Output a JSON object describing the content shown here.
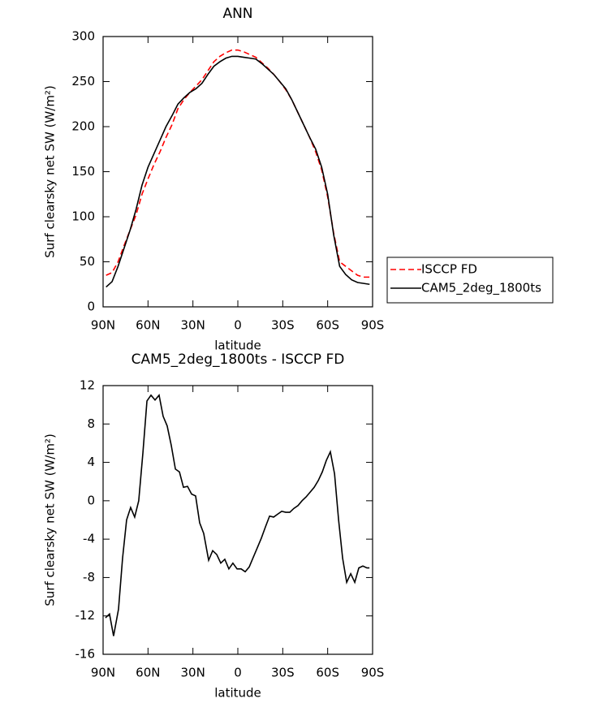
{
  "chart_data": [
    {
      "type": "line",
      "title": "ANN",
      "xlabel": "latitude",
      "ylabel": "Surf clearsky net SW (W/m²)",
      "x": [
        88,
        84,
        80,
        76,
        72,
        68,
        64,
        60,
        56,
        52,
        48,
        44,
        40,
        36,
        32,
        28,
        24,
        20,
        16,
        12,
        8,
        4,
        0,
        -4,
        -8,
        -12,
        -16,
        -20,
        -24,
        -28,
        -32,
        -36,
        -40,
        -44,
        -48,
        -52,
        -56,
        -60,
        -64,
        -68,
        -72,
        -76,
        -80,
        -84,
        -88
      ],
      "series": [
        {
          "name": "ISCCP FD",
          "color": "#ff0000",
          "dashed": true,
          "values": [
            35,
            38,
            50,
            68,
            85,
            102,
            125,
            142,
            158,
            172,
            188,
            202,
            220,
            230,
            238,
            245,
            252,
            262,
            272,
            278,
            282,
            285,
            285,
            283,
            280,
            277,
            271,
            265,
            258,
            250,
            241,
            230,
            216,
            202,
            188,
            172,
            152,
            122,
            82,
            50,
            45,
            40,
            35,
            33,
            33
          ]
        },
        {
          "name": "CAM5_2deg_1800ts",
          "color": "#000000",
          "dashed": false,
          "values": [
            22,
            28,
            45,
            65,
            85,
            108,
            135,
            155,
            170,
            185,
            200,
            212,
            225,
            232,
            238,
            242,
            248,
            258,
            267,
            272,
            276,
            278,
            278,
            277,
            276,
            275,
            270,
            264,
            258,
            250,
            242,
            230,
            216,
            202,
            188,
            175,
            155,
            125,
            80,
            45,
            36,
            30,
            27,
            26,
            25
          ]
        }
      ],
      "xlim": [
        90,
        -90
      ],
      "xticks": [
        {
          "value": 90,
          "label": "90N"
        },
        {
          "value": 60,
          "label": "60N"
        },
        {
          "value": 30,
          "label": "30N"
        },
        0,
        {
          "value": -30,
          "label": "30S"
        },
        {
          "value": -60,
          "label": "60S"
        },
        {
          "value": -90,
          "label": "90S"
        }
      ],
      "ylim": [
        0,
        300
      ],
      "yticks": [
        0,
        50,
        100,
        150,
        200,
        250,
        300
      ],
      "legend": "outside-right"
    },
    {
      "type": "line",
      "title": "CAM5_2deg_1800ts - ISCCP FD",
      "xlabel": "latitude",
      "ylabel": "Surf clearsky net SW (W/m²)",
      "x": [
        88.4,
        85.7,
        83,
        79.7,
        77,
        74.3,
        71.6,
        68.9,
        66.2,
        63.4,
        60.7,
        58,
        55.3,
        52.6,
        49.9,
        47.2,
        44.5,
        41.7,
        39,
        36.3,
        33.6,
        30.9,
        28.2,
        25.5,
        22.8,
        19.5,
        16.8,
        14.1,
        11.4,
        8.7,
        6,
        3.3,
        0.5,
        -2.2,
        -4.9,
        -7.6,
        -10.3,
        -13,
        -15.7,
        -18.5,
        -21.2,
        -23.9,
        -26.6,
        -29.3,
        -32,
        -34.7,
        -37.4,
        -40.2,
        -42.9,
        -45.6,
        -48.3,
        -51,
        -53.7,
        -56.4,
        -59.1,
        -61.8,
        -64.6,
        -67.3,
        -70,
        -72.7,
        -75.4,
        -78.1,
        -80.8,
        -83.5,
        -86.2,
        -87.9
      ],
      "values": [
        -12.2,
        -11.8,
        -14.1,
        -11.3,
        -6,
        -2,
        -0.7,
        -1.7,
        0,
        5,
        10.4,
        11,
        10.5,
        11,
        8.8,
        7.8,
        5.8,
        3.3,
        3,
        1.4,
        1.5,
        0.7,
        0.5,
        -2.3,
        -3.4,
        -6.2,
        -5.2,
        -5.6,
        -6.5,
        -6.1,
        -7.1,
        -6.5,
        -7.1,
        -7.1,
        -7.4,
        -6.9,
        -5.9,
        -4.9,
        -3.9,
        -2.7,
        -1.6,
        -1.7,
        -1.4,
        -1.1,
        -1.2,
        -1.2,
        -0.8,
        -0.5,
        0,
        0.4,
        0.9,
        1.4,
        2.1,
        3,
        4.2,
        5.1,
        2.8,
        -2,
        -6,
        -8.5,
        -7.6,
        -8.5,
        -7,
        -6.8,
        -7,
        -7
      ],
      "color": "#000000",
      "xlim": [
        90,
        -90
      ],
      "xticks": [
        {
          "value": 90,
          "label": "90N"
        },
        {
          "value": 60,
          "label": "60N"
        },
        {
          "value": 30,
          "label": "30N"
        },
        0,
        {
          "value": -30,
          "label": "30S"
        },
        {
          "value": -60,
          "label": "60S"
        },
        {
          "value": -90,
          "label": "90S"
        }
      ],
      "ylim": [
        -16,
        12
      ],
      "yticks": [
        -16,
        -12,
        -8,
        -4,
        0,
        4,
        8,
        12
      ]
    }
  ]
}
